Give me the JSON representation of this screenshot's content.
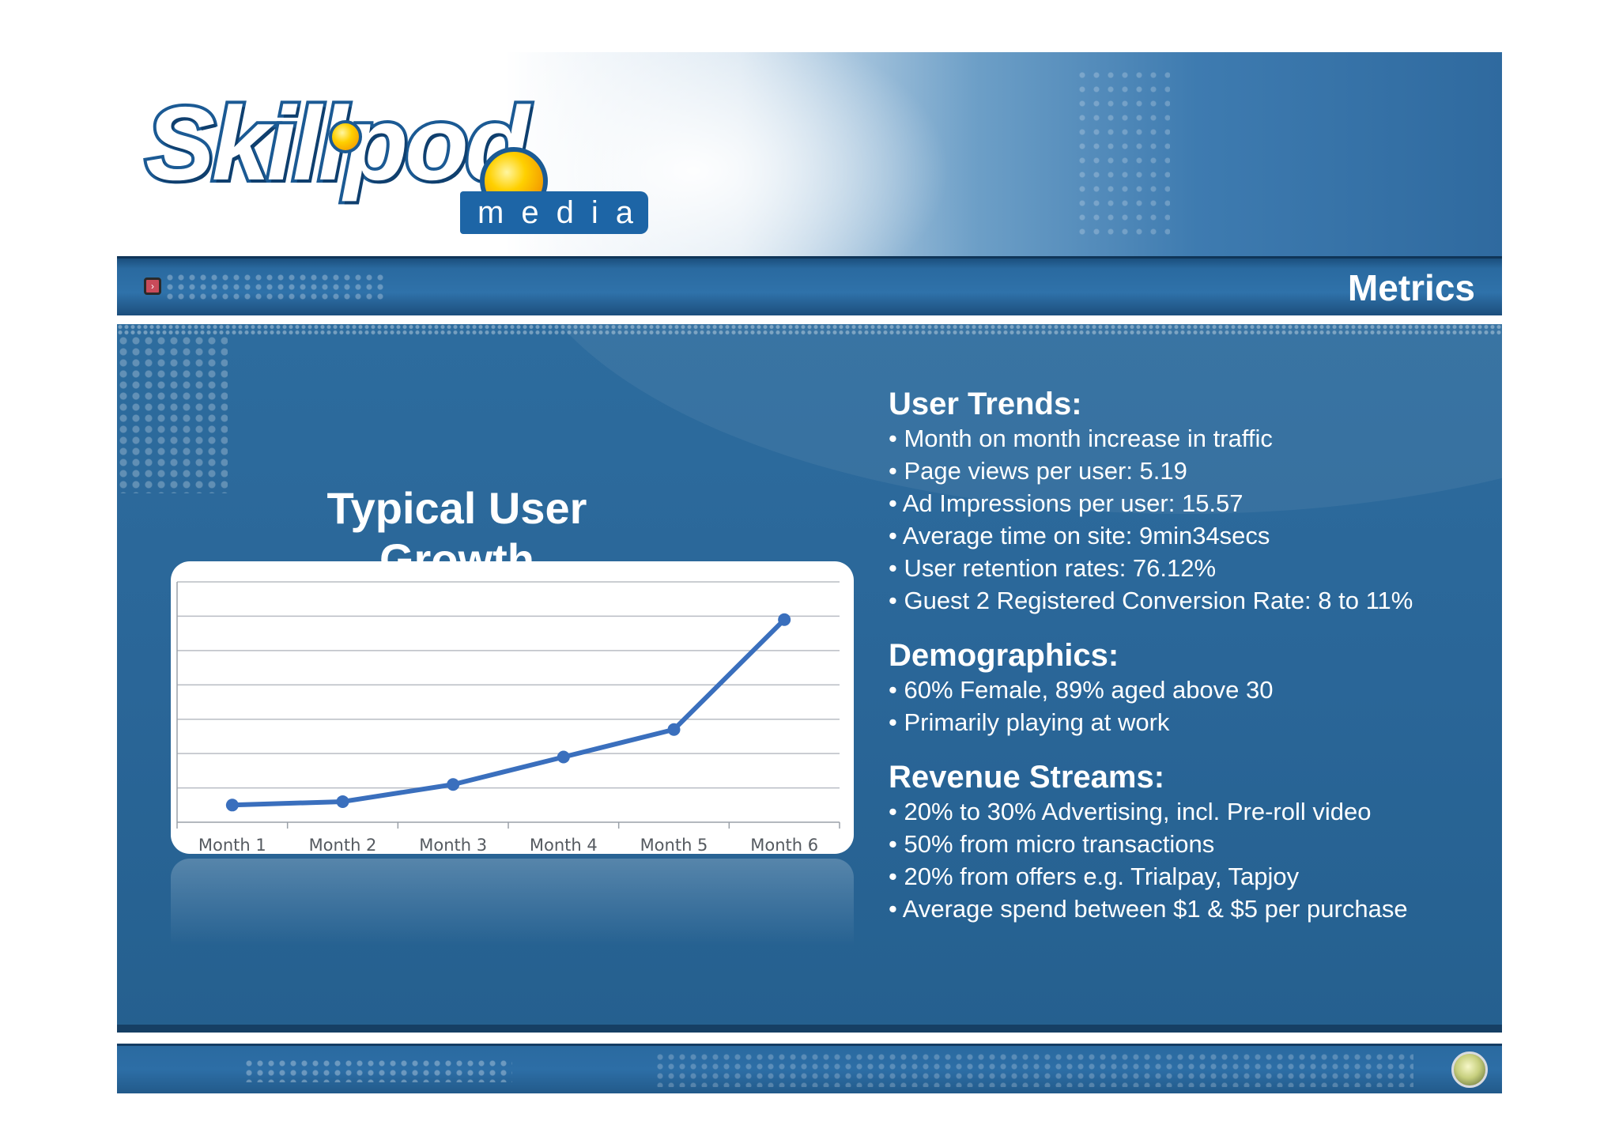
{
  "brand": {
    "logo_word": "Skillpod",
    "logo_sub": "media"
  },
  "header": {
    "title": "Metrics"
  },
  "chart_title": "Typical User Growth",
  "chart_data": {
    "type": "line",
    "title": "Typical User Growth",
    "categories": [
      "Month 1",
      "Month 2",
      "Month 3",
      "Month 4",
      "Month 5",
      "Month 6"
    ],
    "series": [
      {
        "values": [
          5,
          6,
          11,
          19,
          27,
          59
        ]
      }
    ],
    "ylim": [
      0,
      70
    ],
    "grid": true,
    "color": "#3a6fbd"
  },
  "sections": [
    {
      "heading": "User Trends:",
      "items": [
        "• Month on month increase in traffic",
        "• Page views per user: 5.19",
        "• Ad Impressions per user: 15.57",
        "• Average time on site: 9min34secs",
        "• User retention rates: 76.12%",
        "• Guest 2 Registered Conversion Rate: 8 to 11%"
      ]
    },
    {
      "heading": "Demographics:",
      "items": [
        "• 60% Female, 89% aged above 30",
        "• Primarily playing at work"
      ]
    },
    {
      "heading": "Revenue Streams:",
      "items": [
        "• 20% to 30% Advertising, incl. Pre-roll video",
        "• 50% from micro transactions",
        "• 20% from offers e.g. Trialpay, Tapjoy",
        "• Average spend between $1 & $5 per purchase"
      ]
    }
  ]
}
